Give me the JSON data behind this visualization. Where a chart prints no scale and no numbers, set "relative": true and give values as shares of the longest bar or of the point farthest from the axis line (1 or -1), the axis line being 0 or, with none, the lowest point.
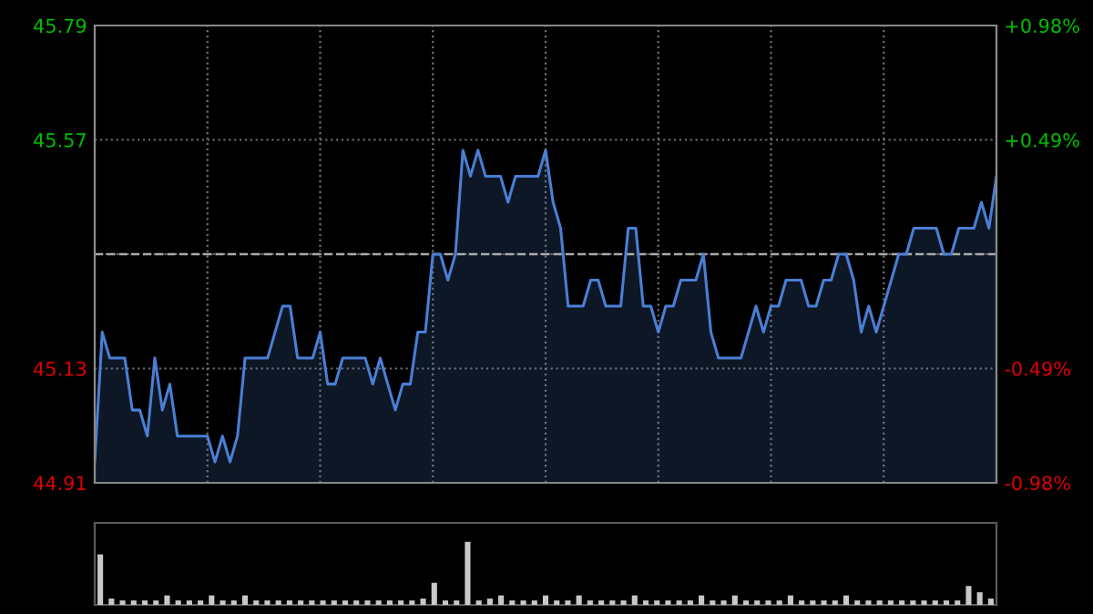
{
  "chart_data": [
    {
      "type": "area",
      "categories": [
        null,
        null,
        null,
        null,
        null,
        null,
        null,
        null,
        null,
        null,
        null,
        null,
        null,
        null,
        null,
        null,
        null,
        null,
        null,
        null,
        null,
        null,
        null,
        null,
        null,
        null,
        null,
        null,
        null,
        null,
        null,
        null,
        null,
        null,
        null,
        null,
        null,
        null,
        null,
        null,
        null,
        null,
        null,
        null,
        null,
        null,
        null,
        null,
        null,
        null,
        null,
        null,
        null,
        null,
        null,
        null,
        null,
        null,
        null,
        null,
        null,
        null,
        null,
        null,
        null,
        null,
        null,
        null,
        null,
        null,
        null,
        null,
        null,
        null,
        null,
        null,
        null,
        null,
        null,
        null,
        null,
        null,
        null,
        null,
        null,
        null,
        null,
        null,
        null,
        null,
        null,
        null,
        null,
        null,
        null,
        null,
        null,
        null,
        null,
        null,
        null,
        null,
        null,
        null,
        null,
        null,
        null,
        null,
        null,
        null,
        null,
        null,
        null,
        null,
        null,
        null,
        null,
        null,
        null,
        null,
        null
      ],
      "ylim": [
        44.91,
        45.79
      ],
      "yticks": [
        44.91,
        45.13,
        {
          "value": 45.35,
          "label": null
        },
        45.57,
        45.79
      ],
      "y2lim": [
        -0.98,
        0.98
      ],
      "y2ticks": [
        {
          "value": -0.98,
          "label": "-0.98%"
        },
        {
          "value": -0.49,
          "label": "-0.49%"
        },
        {
          "value": 0,
          "label": null
        },
        {
          "value": 0.49,
          "label": "+0.49%"
        },
        {
          "value": 0.98,
          "label": "+0.98%"
        }
      ],
      "grid": true,
      "line_style": "solid",
      "marker": "none",
      "ref_lines": [
        {
          "axis": "y",
          "value": 45.35,
          "color": "#aaaaaa",
          "line_style": "dashed"
        }
      ],
      "series": [
        {
          "color": "#4a7fd4",
          "values": [
            44.95,
            45.2,
            45.15,
            45.15,
            45.15,
            45.05,
            45.05,
            45.0,
            45.15,
            45.05,
            45.1,
            45.0,
            45.0,
            45.0,
            45.0,
            45.0,
            44.95,
            45.0,
            44.95,
            45.0,
            45.15,
            45.15,
            45.15,
            45.15,
            45.2,
            45.25,
            45.25,
            45.15,
            45.15,
            45.15,
            45.2,
            45.1,
            45.1,
            45.15,
            45.15,
            45.15,
            45.15,
            45.1,
            45.15,
            45.1,
            45.05,
            45.1,
            45.1,
            45.2,
            45.2,
            45.35,
            45.35,
            45.3,
            45.35,
            45.55,
            45.5,
            45.55,
            45.5,
            45.5,
            45.5,
            45.45,
            45.5,
            45.5,
            45.5,
            45.5,
            45.55,
            45.45,
            45.4,
            45.25,
            45.25,
            45.25,
            45.3,
            45.3,
            45.25,
            45.25,
            45.25,
            45.4,
            45.4,
            45.25,
            45.25,
            45.2,
            45.25,
            45.25,
            45.3,
            45.3,
            45.3,
            45.35,
            45.2,
            45.15,
            45.15,
            45.15,
            45.15,
            45.2,
            45.25,
            45.2,
            45.25,
            45.25,
            45.3,
            45.3,
            45.3,
            45.25,
            45.25,
            45.3,
            45.3,
            45.35,
            45.35,
            45.3,
            45.2,
            45.25,
            45.2,
            45.25,
            45.3,
            45.35,
            45.35,
            45.4,
            45.4,
            45.4,
            45.4,
            45.35,
            45.35,
            45.4,
            45.4,
            45.4,
            45.45,
            45.4,
            45.5
          ]
        }
      ]
    },
    {
      "type": "bar",
      "relative": true,
      "grid": false,
      "categories": [
        null,
        null,
        null,
        null,
        null,
        null,
        null,
        null,
        null,
        null,
        null,
        null,
        null,
        null,
        null,
        null,
        null,
        null,
        null,
        null,
        null,
        null,
        null,
        null,
        null,
        null,
        null,
        null,
        null,
        null,
        null,
        null,
        null,
        null,
        null,
        null,
        null,
        null,
        null,
        null,
        null,
        null,
        null,
        null,
        null,
        null,
        null,
        null,
        null,
        null,
        null,
        null,
        null,
        null,
        null,
        null,
        null,
        null,
        null,
        null,
        null,
        null,
        null,
        null,
        null,
        null,
        null,
        null,
        null,
        null,
        null,
        null,
        null,
        null,
        null,
        null,
        null,
        null,
        null,
        null,
        null
      ],
      "series": [
        {
          "color": "#c8c8c8",
          "values": [
            0.8,
            0.1,
            0.07,
            0.07,
            0.07,
            0.07,
            0.15,
            0.07,
            0.07,
            0.07,
            0.15,
            0.07,
            0.07,
            0.15,
            0.07,
            0.07,
            0.07,
            0.07,
            0.07,
            0.07,
            0.07,
            0.07,
            0.07,
            0.07,
            0.07,
            0.07,
            0.07,
            0.07,
            0.07,
            0.1,
            0.35,
            0.07,
            0.07,
            1.0,
            0.07,
            0.1,
            0.15,
            0.07,
            0.07,
            0.07,
            0.15,
            0.07,
            0.07,
            0.15,
            0.07,
            0.07,
            0.07,
            0.07,
            0.15,
            0.07,
            0.07,
            0.07,
            0.07,
            0.07,
            0.15,
            0.07,
            0.07,
            0.15,
            0.07,
            0.07,
            0.07,
            0.07,
            0.15,
            0.07,
            0.07,
            0.07,
            0.07,
            0.15,
            0.07,
            0.07,
            0.07,
            0.07,
            0.07,
            0.07,
            0.07,
            0.07,
            0.07,
            0.07,
            0.3,
            0.2,
            0.1
          ]
        }
      ]
    }
  ]
}
